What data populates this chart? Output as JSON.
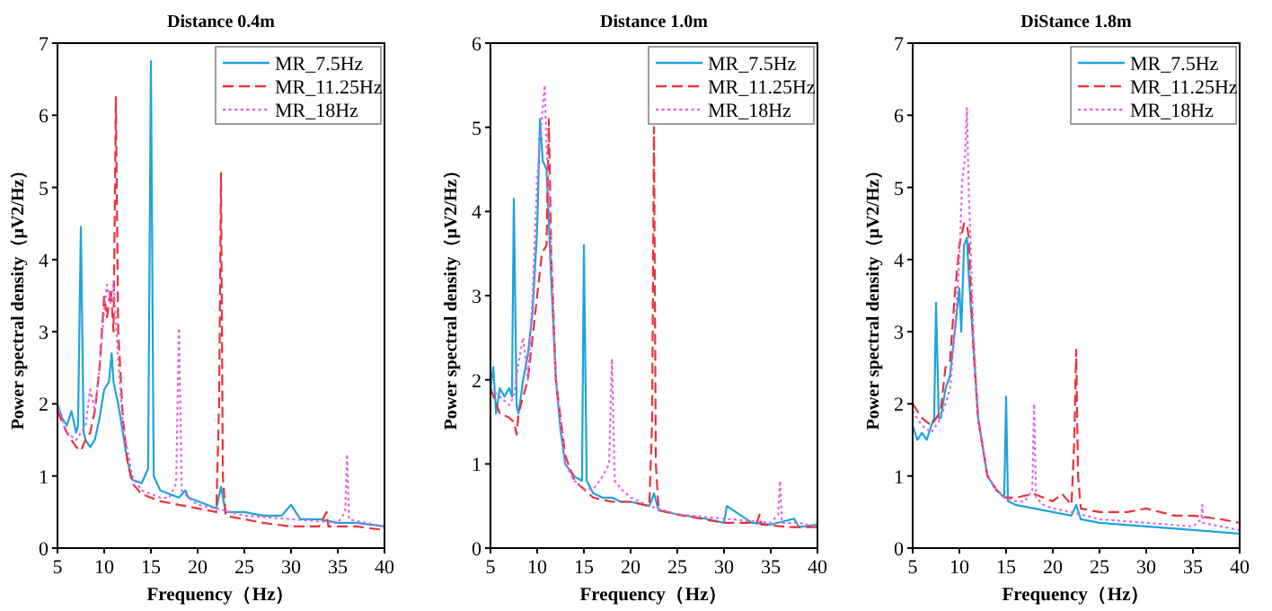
{
  "chart_data": [
    {
      "type": "line",
      "title": "Distance 0.4m",
      "xlabel": "Frequency（Hz）",
      "ylabel": "Power spectral density（μV2/Hz）",
      "xlim": [
        5,
        40
      ],
      "ylim": [
        0,
        7
      ],
      "xticks": [
        5,
        10,
        15,
        20,
        25,
        30,
        35,
        40
      ],
      "yticks": [
        0,
        1,
        2,
        3,
        4,
        5,
        6,
        7
      ],
      "legend": "top right",
      "grid": false,
      "series": [
        {
          "name": "MR_7.5Hz",
          "color": "#1fa3dc",
          "line_style": "solid",
          "x": [
            5,
            5.5,
            6,
            6.5,
            7,
            7.2,
            7.5,
            7.8,
            8,
            8.5,
            9,
            9.5,
            10,
            10.5,
            10.8,
            11,
            11.5,
            12,
            12.5,
            13,
            14,
            14.7,
            15,
            15.3,
            16,
            17,
            18,
            18.7,
            19,
            20,
            21,
            22,
            22.5,
            23,
            25,
            27,
            29,
            30,
            31,
            33,
            35,
            37,
            40
          ],
          "values": [
            2.0,
            1.8,
            1.7,
            1.9,
            1.6,
            1.7,
            4.45,
            1.6,
            1.5,
            1.4,
            1.5,
            1.8,
            2.2,
            2.3,
            2.7,
            2.3,
            2.0,
            1.6,
            1.2,
            0.95,
            0.9,
            1.1,
            6.75,
            1.0,
            0.8,
            0.75,
            0.7,
            0.8,
            0.7,
            0.65,
            0.6,
            0.55,
            0.85,
            0.5,
            0.5,
            0.45,
            0.45,
            0.6,
            0.4,
            0.4,
            0.35,
            0.35,
            0.3
          ]
        },
        {
          "name": "MR_11.25Hz",
          "color": "#e8323c",
          "line_style": "dashed",
          "x": [
            5,
            6,
            7,
            7.5,
            8,
            8.5,
            9,
            9.5,
            10,
            10.3,
            10.7,
            11,
            11.25,
            11.5,
            12,
            12.5,
            13,
            14,
            15,
            16,
            18,
            20,
            22,
            22.3,
            22.5,
            22.7,
            23,
            25,
            27,
            30,
            33,
            33.8,
            34,
            37,
            40
          ],
          "values": [
            1.9,
            1.6,
            1.4,
            1.35,
            1.5,
            1.6,
            1.9,
            2.5,
            3.5,
            3.2,
            3.6,
            3.0,
            6.25,
            3.0,
            1.8,
            1.2,
            0.9,
            0.75,
            0.7,
            0.65,
            0.6,
            0.55,
            0.5,
            2.0,
            5.2,
            1.0,
            0.45,
            0.4,
            0.35,
            0.3,
            0.3,
            0.5,
            0.3,
            0.3,
            0.25
          ]
        },
        {
          "name": "MR_18Hz",
          "color": "#dd66dd",
          "line_style": "dotted",
          "x": [
            5,
            6,
            7,
            8,
            8.5,
            9,
            9.5,
            10,
            10.3,
            10.7,
            11,
            11.5,
            12,
            13,
            14,
            15,
            16,
            17,
            17.7,
            18,
            18.3,
            19,
            20,
            22,
            25,
            30,
            35,
            35.8,
            36,
            36.2,
            38,
            40
          ],
          "values": [
            2.0,
            1.6,
            1.5,
            1.7,
            2.2,
            1.9,
            2.5,
            3.3,
            3.65,
            3.4,
            3.7,
            2.6,
            1.7,
            1.0,
            0.8,
            0.75,
            0.7,
            0.7,
            0.9,
            3.05,
            0.8,
            0.7,
            0.6,
            0.55,
            0.45,
            0.4,
            0.35,
            0.5,
            1.3,
            0.4,
            0.35,
            0.3
          ]
        }
      ]
    },
    {
      "type": "line",
      "title": "Distance 1.0m",
      "xlabel": "Frequency（Hz）",
      "ylabel": "Power spectral density（μV2/Hz）",
      "xlim": [
        5,
        40
      ],
      "ylim": [
        0,
        6
      ],
      "xticks": [
        5,
        10,
        15,
        20,
        25,
        30,
        35,
        40
      ],
      "yticks": [
        0,
        1,
        2,
        3,
        4,
        5,
        6
      ],
      "legend": "top right",
      "grid": false,
      "series": [
        {
          "name": "MR_7.5Hz",
          "color": "#1fa3dc",
          "line_style": "solid",
          "x": [
            5,
            5.3,
            5.6,
            6,
            6.5,
            7,
            7.3,
            7.5,
            7.8,
            8,
            8.5,
            9,
            9.5,
            10,
            10.3,
            10.6,
            11,
            11.5,
            12,
            12.5,
            13,
            14,
            14.8,
            15,
            15.3,
            16,
            17,
            18,
            19,
            20,
            22,
            22.5,
            23,
            25,
            28,
            30,
            30.3,
            33,
            35,
            37.5,
            38,
            40
          ],
          "values": [
            1.9,
            2.15,
            1.6,
            1.9,
            1.8,
            1.9,
            1.8,
            4.15,
            1.7,
            1.6,
            2.0,
            2.3,
            2.8,
            3.8,
            5.1,
            4.6,
            4.5,
            3.2,
            2.0,
            1.4,
            1.0,
            0.85,
            0.8,
            3.6,
            0.8,
            0.65,
            0.6,
            0.6,
            0.55,
            0.55,
            0.5,
            0.65,
            0.45,
            0.4,
            0.35,
            0.3,
            0.5,
            0.3,
            0.28,
            0.35,
            0.25,
            0.28
          ]
        },
        {
          "name": "MR_11.25Hz",
          "color": "#e8323c",
          "line_style": "dashed",
          "x": [
            5,
            6,
            7,
            7.5,
            7.8,
            8,
            8.5,
            9,
            9.5,
            10,
            10.5,
            11,
            11.25,
            11.5,
            12,
            13,
            14,
            15,
            16,
            18,
            20,
            22,
            22.3,
            22.5,
            22.7,
            23,
            25,
            30,
            33.5,
            33.8,
            34,
            37,
            40
          ],
          "values": [
            1.9,
            1.6,
            1.55,
            1.5,
            1.35,
            1.6,
            1.8,
            2.0,
            2.5,
            3.0,
            3.5,
            3.6,
            5.1,
            3.5,
            2.0,
            1.1,
            0.8,
            0.7,
            0.6,
            0.55,
            0.55,
            0.5,
            1.5,
            5.0,
            1.0,
            0.45,
            0.4,
            0.3,
            0.3,
            0.4,
            0.28,
            0.25,
            0.25
          ]
        },
        {
          "name": "MR_18Hz",
          "color": "#dd66dd",
          "line_style": "dotted",
          "x": [
            5,
            6,
            7,
            7.5,
            8,
            8.5,
            9,
            9.5,
            10,
            10.5,
            10.8,
            11,
            11.5,
            12,
            13,
            14,
            15,
            16,
            17,
            17.7,
            18,
            18.3,
            19,
            20,
            22,
            25,
            30,
            35,
            35.8,
            36,
            36.2,
            38,
            40
          ],
          "values": [
            1.9,
            1.8,
            1.7,
            1.8,
            2.2,
            2.5,
            2.0,
            3.0,
            4.4,
            5.1,
            5.5,
            4.8,
            3.5,
            2.0,
            1.0,
            0.8,
            0.7,
            0.7,
            0.85,
            1.0,
            2.25,
            0.8,
            0.7,
            0.6,
            0.5,
            0.4,
            0.35,
            0.3,
            0.4,
            0.8,
            0.3,
            0.3,
            0.25
          ]
        }
      ]
    },
    {
      "type": "line",
      "title": "DiStance 1.8m",
      "xlabel": "Frequency（Hz）",
      "ylabel": "Power spectral density（μV2/Hz）",
      "xlim": [
        5,
        40
      ],
      "ylim": [
        0,
        7
      ],
      "xticks": [
        5,
        10,
        15,
        20,
        25,
        30,
        35,
        40
      ],
      "yticks": [
        0,
        1,
        2,
        3,
        4,
        5,
        6,
        7
      ],
      "legend": "top right",
      "grid": false,
      "series": [
        {
          "name": "MR_7.5Hz",
          "color": "#1fa3dc",
          "line_style": "solid",
          "x": [
            5,
            5.5,
            6,
            6.5,
            7,
            7.3,
            7.5,
            7.8,
            8,
            8.5,
            9,
            9.5,
            10,
            10.2,
            10.5,
            10.8,
            11,
            11.5,
            12,
            12.5,
            13,
            14,
            14.8,
            15,
            15.2,
            16,
            18,
            20,
            22,
            22.5,
            23,
            25,
            30,
            35,
            40
          ],
          "values": [
            1.7,
            1.5,
            1.6,
            1.5,
            1.7,
            1.8,
            3.4,
            1.8,
            1.8,
            2.2,
            2.4,
            3.0,
            3.6,
            3.0,
            4.2,
            4.3,
            3.8,
            2.8,
            1.8,
            1.4,
            1.0,
            0.8,
            0.7,
            2.1,
            0.65,
            0.6,
            0.55,
            0.5,
            0.45,
            0.6,
            0.4,
            0.35,
            0.3,
            0.25,
            0.2
          ]
        },
        {
          "name": "MR_11.25Hz",
          "color": "#e8323c",
          "line_style": "dashed",
          "x": [
            5,
            6,
            7,
            8,
            8.5,
            9,
            9.5,
            10,
            10.5,
            10.8,
            11,
            11.5,
            12,
            13,
            14,
            15,
            16,
            18,
            20,
            21,
            22,
            22.3,
            22.5,
            22.7,
            23,
            25,
            28,
            30,
            33,
            35,
            38,
            40
          ],
          "values": [
            2.0,
            1.8,
            1.7,
            1.9,
            2.5,
            2.6,
            3.5,
            4.2,
            4.5,
            4.5,
            4.3,
            2.8,
            1.8,
            1.0,
            0.8,
            0.7,
            0.7,
            0.75,
            0.65,
            0.75,
            0.6,
            1.5,
            2.75,
            1.0,
            0.55,
            0.5,
            0.5,
            0.55,
            0.45,
            0.45,
            0.4,
            0.35
          ]
        },
        {
          "name": "MR_18Hz",
          "color": "#dd66dd",
          "line_style": "dotted",
          "x": [
            5,
            6,
            7,
            8,
            8.5,
            9,
            9.5,
            10,
            10.3,
            10.6,
            10.8,
            11,
            11.5,
            12,
            13,
            14,
            15,
            16,
            17,
            17.8,
            18,
            18.2,
            19,
            20,
            22,
            25,
            30,
            35,
            35.9,
            36,
            36.1,
            38,
            40
          ],
          "values": [
            1.9,
            1.7,
            1.6,
            1.8,
            2.0,
            2.2,
            3.0,
            4.0,
            5.1,
            5.4,
            6.1,
            5.0,
            3.0,
            1.8,
            1.0,
            0.8,
            0.7,
            0.65,
            0.65,
            0.8,
            2.0,
            0.7,
            0.6,
            0.55,
            0.5,
            0.4,
            0.35,
            0.3,
            0.4,
            0.6,
            0.35,
            0.3,
            0.25
          ]
        }
      ]
    }
  ]
}
